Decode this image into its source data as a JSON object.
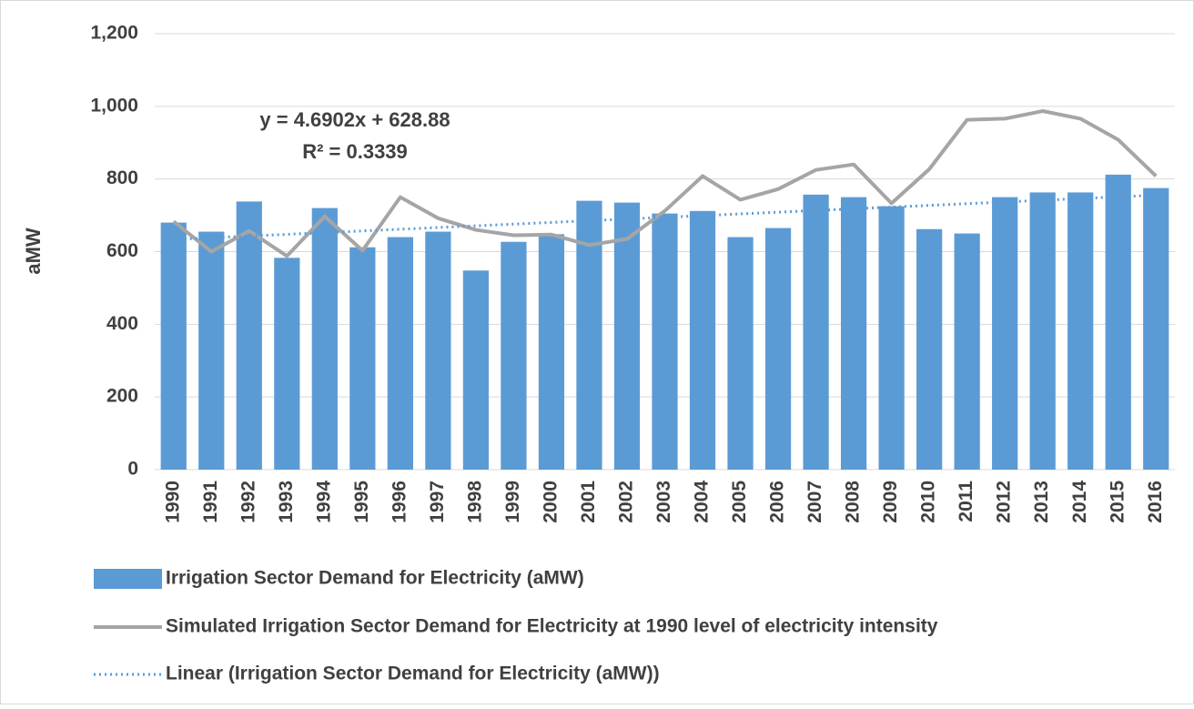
{
  "chart_data": {
    "type": "bar",
    "y_label": "aMW",
    "categories": [
      "1990",
      "1991",
      "1992",
      "1993",
      "1994",
      "1995",
      "1996",
      "1997",
      "1998",
      "1999",
      "2000",
      "2001",
      "2002",
      "2003",
      "2004",
      "2005",
      "2006",
      "2007",
      "2008",
      "2009",
      "2010",
      "2011",
      "2012",
      "2013",
      "2014",
      "2015",
      "2016"
    ],
    "series": [
      {
        "name": "Irrigation Sector Demand for Electricity (aMW)",
        "type": "bar",
        "color": "#5b9bd5",
        "values": [
          680,
          655,
          738,
          583,
          720,
          612,
          640,
          655,
          548,
          627,
          648,
          740,
          735,
          705,
          712,
          640,
          665,
          757,
          750,
          725,
          662,
          650,
          750,
          763,
          763,
          812,
          775
        ]
      },
      {
        "name": "Simulated Irrigation Sector Demand for Electricity at 1990 level of electricity intensity",
        "type": "line",
        "color": "#a5a5a5",
        "values": [
          683,
          600,
          657,
          588,
          697,
          603,
          750,
          692,
          660,
          645,
          647,
          618,
          635,
          712,
          808,
          743,
          772,
          825,
          840,
          733,
          827,
          963,
          966,
          987,
          966,
          908,
          808
        ]
      }
    ],
    "trendline": {
      "name": "Linear (Irrigation Sector Demand for Electricity (aMW))",
      "color": "#5b9bd5",
      "slope": 4.6902,
      "intercept": 628.88,
      "equation": "y = 4.6902x + 628.88",
      "r_squared": "R² = 0.3339"
    },
    "ylim": [
      0,
      1200
    ],
    "yticks": [
      0,
      200,
      400,
      600,
      800,
      {
        "value": 1000,
        "label": "1,000"
      },
      {
        "value": 1200,
        "label": "1,200"
      }
    ],
    "grid": true
  }
}
